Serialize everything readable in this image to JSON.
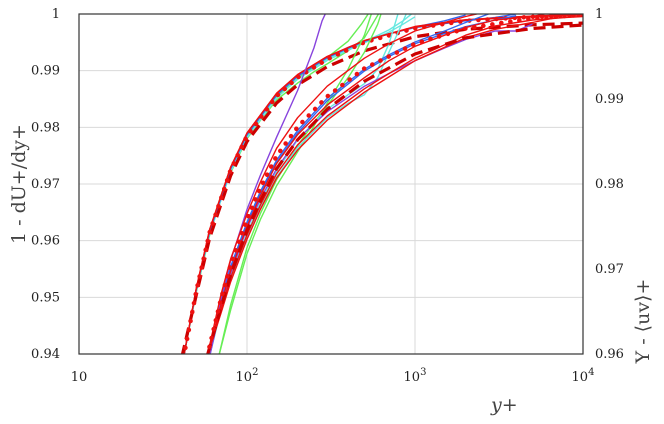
{
  "chart_data": {
    "type": "line",
    "x_scale": "log",
    "xlim": [
      10,
      10000
    ],
    "xticks": [
      "10",
      "10^2",
      "10^3",
      "10^4"
    ],
    "xlabel": "y+",
    "y_left": {
      "label": "1 - dU+/dy+",
      "ylim": [
        0.94,
        1.0
      ],
      "ticks": [
        "0.94",
        "0.95",
        "0.96",
        "0.97",
        "0.98",
        "0.99",
        "1"
      ]
    },
    "y_right": {
      "label": "Y - ⟨uv⟩+",
      "ylim": [
        0.96,
        1.0
      ],
      "ticks": [
        "0.96",
        "0.97",
        "0.98",
        "0.99",
        "1"
      ]
    },
    "grid": true,
    "colors": {
      "green": "#66ee55",
      "cyan": "#66e8e0",
      "blue": "#3366ee",
      "purple": "#8844dd",
      "red": "#ee1111",
      "darkred": "#cc0000"
    },
    "groups": [
      {
        "axis": "left",
        "series": [
          {
            "color": "green",
            "style": "solid",
            "x": [
              42,
              50,
              60,
              70,
              80,
              100,
              120,
              150,
              200,
              250,
              300,
              400,
              480,
              540
            ],
            "y": [
              0.9395,
              0.9515,
              0.9617,
              0.968,
              0.9725,
              0.9785,
              0.9818,
              0.9855,
              0.9886,
              0.9907,
              0.9923,
              0.9952,
              0.9982,
              1.0005
            ]
          },
          {
            "color": "green",
            "style": "solid",
            "x": [
              42,
              50,
              60,
              70,
              80,
              100,
              120,
              150,
              200,
              250,
              300,
              400,
              500,
              620
            ],
            "y": [
              0.9395,
              0.951,
              0.961,
              0.9675,
              0.972,
              0.978,
              0.9812,
              0.9848,
              0.9878,
              0.9898,
              0.9912,
              0.9935,
              0.9958,
              1.0005
            ]
          },
          {
            "color": "cyan",
            "style": "solid",
            "x": [
              42,
              50,
              60,
              80,
              100,
              150,
              200,
              300,
              400,
              500,
              700,
              850,
              1000
            ],
            "y": [
              0.9395,
              0.9512,
              0.9613,
              0.9722,
              0.9782,
              0.9852,
              0.9885,
              0.992,
              0.9938,
              0.9951,
              0.9972,
              0.9988,
              1.0005
            ]
          },
          {
            "color": "cyan",
            "style": "solid",
            "x": [
              42,
              50,
              60,
              80,
              100,
              150,
              200,
              300,
              400,
              500,
              700,
              850,
              1000
            ],
            "y": [
              0.9395,
              0.9512,
              0.9613,
              0.9722,
              0.9782,
              0.9852,
              0.9885,
              0.9918,
              0.9936,
              0.9949,
              0.9968,
              0.9982,
              0.9995
            ]
          },
          {
            "color": "blue",
            "style": "solid",
            "x": [
              42,
              50,
              60,
              80,
              100,
              150,
              200,
              300,
              400,
              500,
              700,
              1000,
              1500,
              2000
            ],
            "y": [
              0.9395,
              0.9515,
              0.9617,
              0.9727,
              0.9787,
              0.9857,
              0.989,
              0.9923,
              0.9941,
              0.9952,
              0.9965,
              0.9977,
              0.9988,
              0.9998
            ]
          },
          {
            "color": "blue",
            "style": "solid",
            "x": [
              42,
              50,
              60,
              80,
              100,
              150,
              200,
              300,
              500,
              700,
              1000,
              2000,
              3000,
              4000
            ],
            "y": [
              0.9395,
              0.9515,
              0.9617,
              0.9727,
              0.9787,
              0.9857,
              0.989,
              0.9923,
              0.9952,
              0.9965,
              0.9976,
              0.9988,
              0.9994,
              1.0
            ]
          },
          {
            "color": "red",
            "style": "solid",
            "x": [
              42,
              50,
              60,
              80,
              100,
              150,
              200,
              300,
              500,
              1000,
              2000,
              4000,
              8000,
              10000
            ],
            "y": [
              0.9395,
              0.9517,
              0.962,
              0.973,
              0.979,
              0.986,
              0.9893,
              0.9925,
              0.9953,
              0.9978,
              0.999,
              0.9995,
              0.9999,
              1.0
            ]
          },
          {
            "color": "red",
            "style": "solid",
            "x": [
              42,
              50,
              60,
              80,
              100,
              150,
              200,
              300,
              500,
              1000,
              2000,
              4000,
              8000,
              10000
            ],
            "y": [
              0.9395,
              0.9517,
              0.962,
              0.973,
              0.979,
              0.986,
              0.9893,
              0.9925,
              0.9953,
              0.9977,
              0.9989,
              0.9994,
              0.9998,
              0.9999
            ]
          },
          {
            "color": "darkred",
            "style": "dashed",
            "x": [
              41,
              50,
              60,
              80,
              100,
              150,
              200,
              300,
              500,
              1000,
              2000,
              5000,
              10000
            ],
            "y": [
              0.9395,
              0.9505,
              0.9605,
              0.9715,
              0.9775,
              0.9843,
              0.9875,
              0.9907,
              0.9935,
              0.996,
              0.9973,
              0.9981,
              0.9984
            ]
          },
          {
            "color": "red",
            "style": "dotted",
            "x": [
              42,
              50,
              60,
              80,
              100,
              150,
              200,
              300,
              500,
              1000,
              2000,
              5000,
              10000
            ],
            "y": [
              0.9395,
              0.9512,
              0.9615,
              0.9725,
              0.9785,
              0.9855,
              0.9888,
              0.992,
              0.995,
              0.9975,
              0.9988,
              0.9995,
              0.9998
            ]
          }
        ]
      },
      {
        "axis": "right",
        "series": [
          {
            "color": "green",
            "style": "solid",
            "x": [
              68,
              80,
              100,
              120,
              150,
              200,
              250,
              300,
              400,
              500,
              560
            ],
            "y": [
              0.9598,
              0.9652,
              0.9718,
              0.9758,
              0.9798,
              0.9838,
              0.9868,
              0.9895,
              0.9935,
              0.9975,
              1.0005
            ]
          },
          {
            "color": "green",
            "style": "solid",
            "x": [
              68,
              80,
              100,
              120,
              150,
              200,
              250,
              300,
              400,
              500,
              600,
              640
            ],
            "y": [
              0.9598,
              0.9658,
              0.9725,
              0.9765,
              0.9805,
              0.9845,
              0.9872,
              0.9892,
              0.9925,
              0.9955,
              0.9988,
              1.0005
            ]
          },
          {
            "color": "cyan",
            "style": "solid",
            "x": [
              60,
              70,
              80,
              100,
              120,
              150,
              200,
              300,
              400,
              500,
              600,
              700,
              800,
              900
            ],
            "y": [
              0.9598,
              0.9652,
              0.9688,
              0.9738,
              0.9772,
              0.9808,
              0.9843,
              0.9878,
              0.9895,
              0.9905,
              0.9925,
              0.9955,
              0.998,
              1.0003
            ]
          },
          {
            "color": "cyan",
            "style": "solid",
            "x": [
              60,
              70,
              80,
              100,
              120,
              150,
              200,
              300,
              400,
              500,
              600,
              700,
              800
            ],
            "y": [
              0.9598,
              0.9655,
              0.9692,
              0.9742,
              0.9778,
              0.9815,
              0.9852,
              0.9888,
              0.9905,
              0.9918,
              0.9935,
              0.9965,
              1.0003
            ]
          },
          {
            "color": "blue",
            "style": "solid",
            "x": [
              60,
              70,
              80,
              100,
              120,
              150,
              200,
              300,
              500,
              700,
              1000,
              1500,
              2000,
              3000,
              4000
            ],
            "y": [
              0.9598,
              0.966,
              0.97,
              0.9752,
              0.9788,
              0.9825,
              0.986,
              0.9898,
              0.9933,
              0.995,
              0.9965,
              0.9977,
              0.9985,
              0.9993,
              0.9998
            ]
          },
          {
            "color": "blue",
            "style": "solid",
            "x": [
              60,
              70,
              80,
              100,
              120,
              150,
              200,
              300,
              500,
              700,
              1000,
              1500,
              2000,
              3000
            ],
            "y": [
              0.9598,
              0.9662,
              0.9703,
              0.9755,
              0.9791,
              0.9828,
              0.9863,
              0.9901,
              0.9935,
              0.9952,
              0.9967,
              0.998,
              0.999,
              1.0003
            ]
          },
          {
            "color": "purple",
            "style": "solid",
            "x": [
              60,
              70,
              80,
              100,
              120,
              150,
              200,
              250,
              280,
              300,
              320,
              350,
              400,
              500,
              700,
              1000,
              2000,
              3000,
              4000
            ],
            "y": [
              0.9598,
              0.9665,
              0.971,
              0.977,
              0.981,
              0.9855,
              0.991,
              0.996,
              0.9992,
              1.0005,
              1.0008,
              1.0005,
              1.0003,
              1.0002,
              1.0002,
              1.0002,
              1.0003,
              1.0004,
              1.0004
            ]
          },
          {
            "color": "purple",
            "style": "solid",
            "x": [
              60,
              70,
              80,
              100,
              120,
              150,
              200,
              300,
              500,
              700,
              1000,
              1500,
              2000,
              3000,
              4000,
              5000
            ],
            "y": [
              0.9598,
              0.9655,
              0.9695,
              0.9748,
              0.9782,
              0.9818,
              0.9853,
              0.9885,
              0.9915,
              0.993,
              0.9945,
              0.996,
              0.997,
              0.998,
              0.998,
              0.9988
            ]
          },
          {
            "color": "red",
            "style": "solid",
            "x": [
              58,
              70,
              80,
              100,
              120,
              150,
              200,
              300,
              500,
              700,
              1000,
              1500,
              2000,
              3000,
              4000,
              5000,
              6000
            ],
            "y": [
              0.9598,
              0.967,
              0.9712,
              0.9765,
              0.9802,
              0.9842,
              0.9878,
              0.9915,
              0.9948,
              0.9965,
              0.998,
              0.999,
              0.9997,
              1.0005,
              1.0008,
              1.0006,
              1.0003
            ]
          },
          {
            "color": "red",
            "style": "solid",
            "x": [
              58,
              70,
              80,
              100,
              120,
              150,
              200,
              300,
              500,
              700,
              1000,
              1500,
              2000,
              3000,
              5000,
              7000,
              8000
            ],
            "y": [
              0.9598,
              0.9658,
              0.9698,
              0.975,
              0.9786,
              0.9824,
              0.9858,
              0.9893,
              0.9925,
              0.9945,
              0.9962,
              0.9975,
              0.9984,
              0.9993,
              0.9997,
              1.0003,
              1.0012
            ]
          },
          {
            "color": "red",
            "style": "solid",
            "x": [
              58,
              70,
              80,
              100,
              120,
              150,
              200,
              300,
              500,
              700,
              1000,
              2000,
              3000,
              5000,
              8000,
              10000
            ],
            "y": [
              0.9598,
              0.9652,
              0.969,
              0.974,
              0.9775,
              0.9812,
              0.9846,
              0.988,
              0.9912,
              0.993,
              0.9948,
              0.9975,
              0.9986,
              0.9993,
              0.9996,
              0.9997
            ]
          },
          {
            "color": "red",
            "style": "solid",
            "x": [
              58,
              70,
              80,
              100,
              120,
              150,
              200,
              300,
              500,
              700,
              1000,
              2000,
              3000,
              5000,
              7000,
              8000,
              8500
            ],
            "y": [
              0.9598,
              0.9648,
              0.9685,
              0.9735,
              0.977,
              0.9807,
              0.984,
              0.9875,
              0.9908,
              0.9926,
              0.9945,
              0.9972,
              0.9982,
              0.999,
              0.9996,
              1.0008,
              1.0018
            ]
          },
          {
            "color": "darkred",
            "style": "dashed",
            "x": [
              58,
              70,
              80,
              100,
              120,
              150,
              200,
              300,
              500,
              1000,
              2000,
              5000,
              10000
            ],
            "y": [
              0.9598,
              0.9655,
              0.9693,
              0.9745,
              0.978,
              0.9818,
              0.9852,
              0.9888,
              0.9921,
              0.9953,
              0.9972,
              0.9983,
              0.9987
            ]
          },
          {
            "color": "red",
            "style": "dotted",
            "x": [
              58,
              70,
              80,
              100,
              120,
              150,
              200,
              300,
              500,
              1000,
              2000,
              5000,
              10000
            ],
            "y": [
              0.9598,
              0.9665,
              0.9705,
              0.9758,
              0.9795,
              0.9833,
              0.9867,
              0.9903,
              0.9936,
              0.9965,
              0.9983,
              0.9995,
              0.9999
            ]
          }
        ]
      }
    ]
  }
}
